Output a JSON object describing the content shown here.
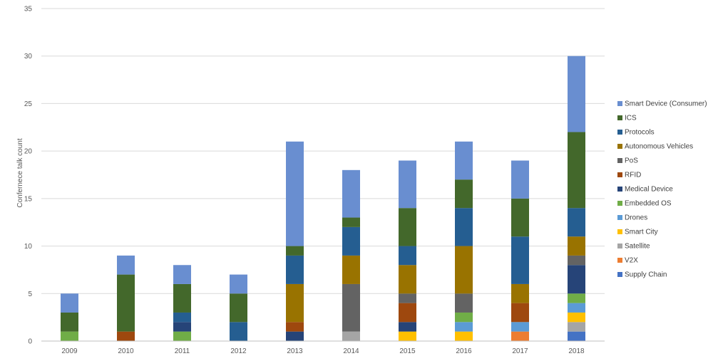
{
  "chart_data": {
    "type": "bar",
    "stacked": true,
    "title": "",
    "xlabel": "",
    "ylabel": "Confernece talk count",
    "ylim": [
      0,
      35
    ],
    "yticks": [
      0,
      5,
      10,
      15,
      20,
      25,
      30,
      35
    ],
    "grid": true,
    "legend_position": "right",
    "categories": [
      "2009",
      "2010",
      "2011",
      "2012",
      "2013",
      "2014",
      "2015",
      "2016",
      "2017",
      "2018"
    ],
    "series": [
      {
        "name": "Supply Chain",
        "color": "#4472C4",
        "values": [
          0,
          0,
          0,
          0,
          0,
          0,
          0,
          0,
          0,
          1
        ]
      },
      {
        "name": "V2X",
        "color": "#ED7D31",
        "values": [
          0,
          0,
          0,
          0,
          0,
          0,
          0,
          0,
          1,
          0
        ]
      },
      {
        "name": "Satellite",
        "color": "#A5A5A5",
        "values": [
          0,
          0,
          0,
          0,
          0,
          1,
          0,
          0,
          0,
          1
        ]
      },
      {
        "name": "Smart City",
        "color": "#FFC000",
        "values": [
          0,
          0,
          0,
          0,
          0,
          0,
          1,
          1,
          0,
          1
        ]
      },
      {
        "name": "Drones",
        "color": "#5B9BD5",
        "values": [
          0,
          0,
          0,
          0,
          0,
          0,
          0,
          1,
          1,
          1
        ]
      },
      {
        "name": "Embedded OS",
        "color": "#70AD47",
        "values": [
          1,
          0,
          1,
          0,
          0,
          0,
          0,
          1,
          0,
          1
        ]
      },
      {
        "name": "Medical Device",
        "color": "#264478",
        "values": [
          0,
          0,
          1,
          0,
          1,
          0,
          1,
          0,
          0,
          3
        ]
      },
      {
        "name": "RFID",
        "color": "#9E480E",
        "values": [
          0,
          1,
          0,
          0,
          1,
          0,
          2,
          0,
          2,
          0
        ]
      },
      {
        "name": "PoS",
        "color": "#636363",
        "values": [
          0,
          0,
          0,
          0,
          0,
          5,
          1,
          2,
          0,
          1
        ]
      },
      {
        "name": "Autonomous Vehicles",
        "color": "#997300",
        "values": [
          0,
          0,
          0,
          0,
          4,
          3,
          3,
          5,
          2,
          2
        ]
      },
      {
        "name": "Protocols",
        "color": "#255E91",
        "values": [
          0,
          0,
          1,
          2,
          3,
          3,
          2,
          4,
          5,
          3
        ]
      },
      {
        "name": "ICS",
        "color": "#43682B",
        "values": [
          2,
          6,
          3,
          3,
          1,
          1,
          4,
          3,
          4,
          8
        ]
      },
      {
        "name": "Smart Device (Consumer)",
        "color": "#698ED0",
        "values": [
          2,
          2,
          2,
          2,
          11,
          5,
          5,
          4,
          4,
          8
        ]
      }
    ]
  }
}
